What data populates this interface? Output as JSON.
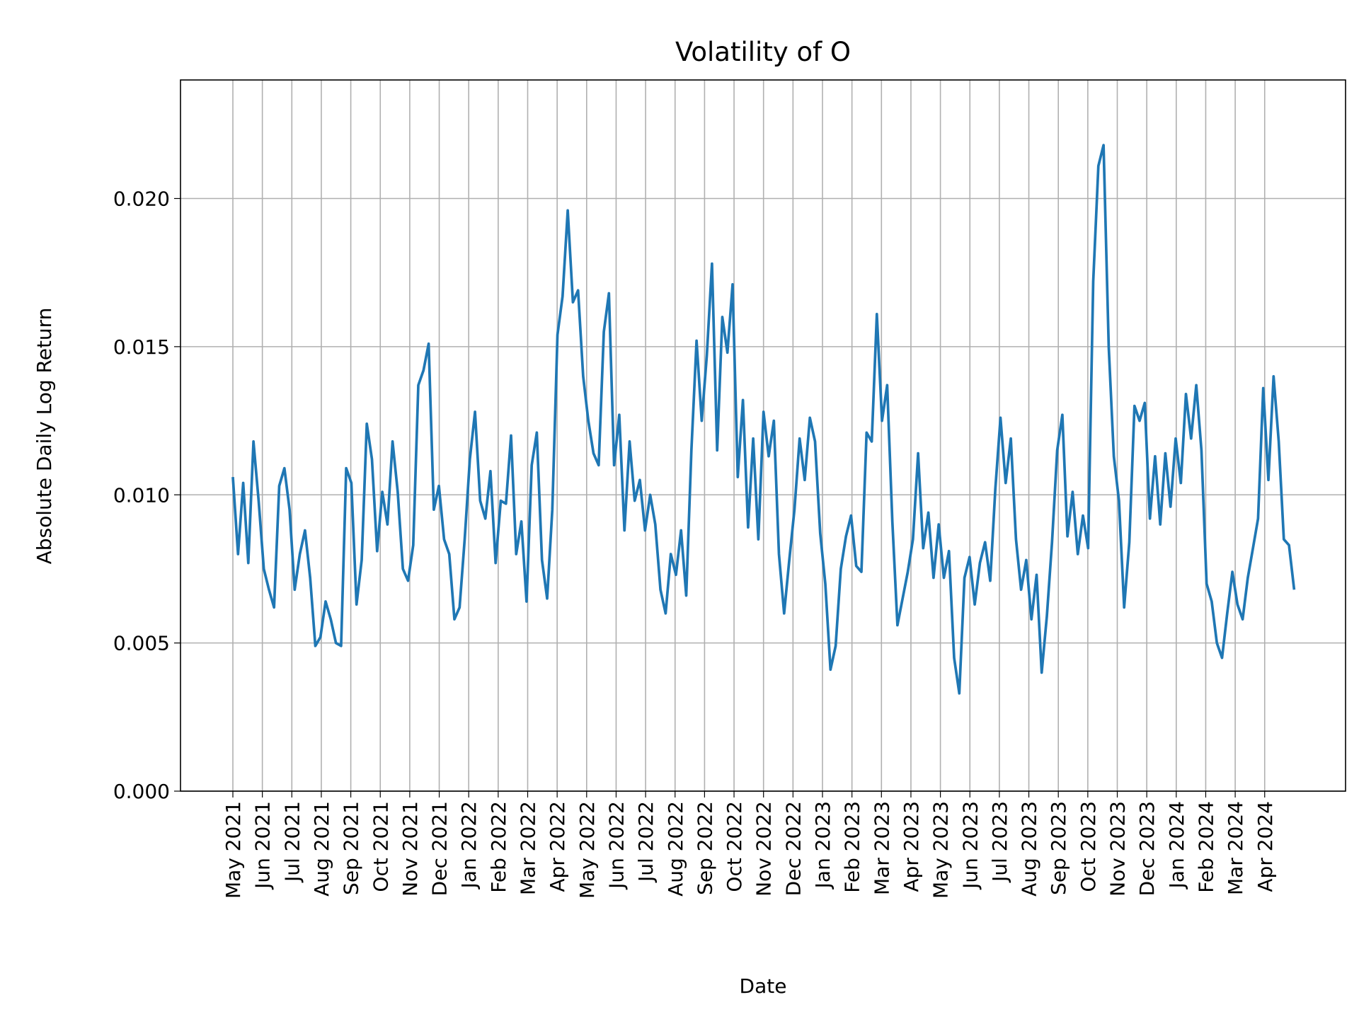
{
  "chart_data": {
    "type": "line",
    "title": "Volatility of O",
    "x_label": "Date",
    "y_label": "Absolute Daily Log Return",
    "xticks": [
      "May 2021",
      "Jun 2021",
      "Jul 2021",
      "Aug 2021",
      "Sep 2021",
      "Oct 2021",
      "Nov 2021",
      "Dec 2021",
      "Jan 2022",
      "Feb 2022",
      "Mar 2022",
      "Apr 2022",
      "May 2022",
      "Jun 2022",
      "Jul 2022",
      "Aug 2022",
      "Sep 2022",
      "Oct 2022",
      "Nov 2022",
      "Dec 2022",
      "Jan 2023",
      "Feb 2023",
      "Mar 2023",
      "Apr 2023",
      "May 2023",
      "Jun 2023",
      "Jul 2023",
      "Aug 2023",
      "Sep 2023",
      "Oct 2023",
      "Nov 2023",
      "Dec 2023",
      "Jan 2024",
      "Feb 2024",
      "Mar 2024",
      "Apr 2024"
    ],
    "ylim": [
      0,
      0.024
    ],
    "yticks": [
      {
        "value": 0,
        "label": "0.000"
      },
      {
        "value": 0.005,
        "label": "0.005"
      },
      {
        "value": 0.01,
        "label": "0.010"
      },
      {
        "value": 0.015,
        "label": "0.015"
      },
      {
        "value": 0.02,
        "label": "0.020"
      }
    ],
    "grid": true,
    "series": [
      {
        "color": "#1f77b4",
        "values": [
          0.0106,
          0.008,
          0.0104,
          0.0077,
          0.0118,
          0.0098,
          0.0075,
          0.0068,
          0.0062,
          0.0103,
          0.0109,
          0.0095,
          0.0068,
          0.008,
          0.0088,
          0.0072,
          0.0049,
          0.0052,
          0.0064,
          0.0058,
          0.005,
          0.0049,
          0.0109,
          0.0104,
          0.0063,
          0.0078,
          0.0124,
          0.0112,
          0.0081,
          0.0101,
          0.009,
          0.0118,
          0.0101,
          0.0075,
          0.0071,
          0.0083,
          0.0137,
          0.0142,
          0.0151,
          0.0095,
          0.0103,
          0.0085,
          0.008,
          0.0058,
          0.0062,
          0.0085,
          0.0112,
          0.0128,
          0.0098,
          0.0092,
          0.0108,
          0.0077,
          0.0098,
          0.0097,
          0.012,
          0.008,
          0.0091,
          0.0064,
          0.011,
          0.0121,
          0.0078,
          0.0065,
          0.0095,
          0.0154,
          0.0167,
          0.0196,
          0.0165,
          0.0169,
          0.014,
          0.0125,
          0.0114,
          0.011,
          0.0155,
          0.0168,
          0.011,
          0.0127,
          0.0088,
          0.0118,
          0.0098,
          0.0105,
          0.0088,
          0.01,
          0.009,
          0.0068,
          0.006,
          0.008,
          0.0073,
          0.0088,
          0.0066,
          0.0115,
          0.0152,
          0.0125,
          0.0147,
          0.0178,
          0.0115,
          0.016,
          0.0148,
          0.0171,
          0.0106,
          0.0132,
          0.0089,
          0.0119,
          0.0085,
          0.0128,
          0.0113,
          0.0125,
          0.008,
          0.006,
          0.0078,
          0.0095,
          0.0119,
          0.0105,
          0.0126,
          0.0118,
          0.0087,
          0.007,
          0.0041,
          0.0049,
          0.0075,
          0.0086,
          0.0093,
          0.0076,
          0.0074,
          0.0121,
          0.0118,
          0.0161,
          0.0125,
          0.0137,
          0.0091,
          0.0056,
          0.0065,
          0.0074,
          0.0085,
          0.0114,
          0.0082,
          0.0094,
          0.0072,
          0.009,
          0.0072,
          0.0081,
          0.0045,
          0.0033,
          0.0072,
          0.0079,
          0.0063,
          0.0077,
          0.0084,
          0.0071,
          0.0102,
          0.0126,
          0.0104,
          0.0119,
          0.0085,
          0.0068,
          0.0078,
          0.0058,
          0.0073,
          0.004,
          0.0059,
          0.0084,
          0.0115,
          0.0127,
          0.0086,
          0.0101,
          0.008,
          0.0093,
          0.0082,
          0.0172,
          0.0211,
          0.0218,
          0.015,
          0.0113,
          0.0098,
          0.0062,
          0.0084,
          0.013,
          0.0125,
          0.0131,
          0.0092,
          0.0113,
          0.009,
          0.0114,
          0.0096,
          0.0119,
          0.0104,
          0.0134,
          0.0119,
          0.0137,
          0.0115,
          0.007,
          0.0064,
          0.005,
          0.0045,
          0.006,
          0.0074,
          0.0063,
          0.0058,
          0.0072,
          0.0082,
          0.0092,
          0.0136,
          0.0105,
          0.014,
          0.0118,
          0.0085,
          0.0083,
          0.0068
        ]
      }
    ]
  }
}
